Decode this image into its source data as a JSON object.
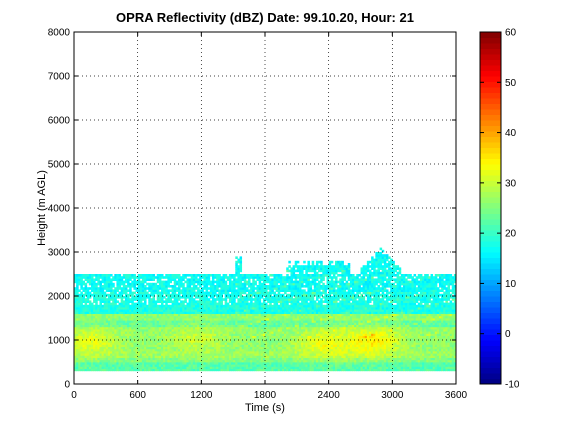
{
  "chart_data": {
    "type": "heatmap",
    "title": "OPRA Reflectivity (dBZ)  Date: 99.10.20, Hour: 21",
    "xlabel": "Time (s)",
    "ylabel": "Height (m AGL)",
    "xlim": [
      0,
      3600
    ],
    "ylim": [
      0,
      8000
    ],
    "xticks": [
      "0",
      "600",
      "1200",
      "1800",
      "2400",
      "3000",
      "3600"
    ],
    "yticks": [
      "0",
      "1000",
      "2000",
      "3000",
      "4000",
      "5000",
      "6000",
      "7000",
      "8000"
    ],
    "grid": true,
    "colorbar": {
      "range": [
        -10,
        60
      ],
      "ticks": [
        "-10",
        "0",
        "10",
        "20",
        "30",
        "40",
        "50",
        "60"
      ],
      "colormap": "jet"
    },
    "echo_layers": [
      {
        "height_range_m": [
          300,
          500
        ],
        "dbz": 22
      },
      {
        "height_range_m": [
          500,
          600
        ],
        "dbz": 25
      },
      {
        "height_range_m": [
          600,
          750
        ],
        "dbz": 27
      },
      {
        "height_range_m": [
          750,
          1300
        ],
        "dbz": 26
      },
      {
        "height_range_m": [
          1300,
          1450
        ],
        "dbz": 23
      },
      {
        "height_range_m": [
          1450,
          1600
        ],
        "dbz": 26
      },
      {
        "height_range_m": [
          1600,
          2100
        ],
        "dbz": 18
      },
      {
        "height_range_m": [
          2100,
          2500
        ],
        "dbz": 17
      }
    ],
    "echo_top_m": 2500,
    "echo_top_peak": {
      "time_s": 2880,
      "height_m": 3100
    },
    "strong_cores": [
      {
        "time_s": 150,
        "height_m": 950,
        "dbz": 32
      },
      {
        "time_s": 1150,
        "height_m": 1000,
        "dbz": 30
      },
      {
        "time_s": 2350,
        "height_m": 900,
        "dbz": 33
      },
      {
        "time_s": 2800,
        "height_m": 950,
        "dbz": 35
      }
    ]
  }
}
